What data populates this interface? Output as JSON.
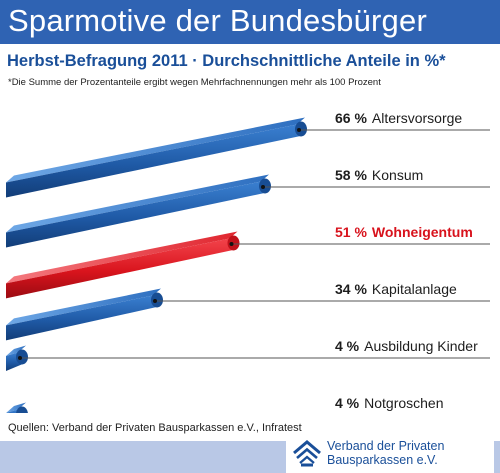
{
  "header": {
    "title": "Sparmotive der Bundesbürger",
    "subtitle": "Herbst-Befragung 2011 · Durchschnittliche Anteile in %*",
    "footnote": "*Die Summe der Prozentanteile ergibt wegen Mehrfachnennungen mehr als 100 Prozent"
  },
  "chart_data": {
    "type": "bar",
    "orientation": "horizontal",
    "title": "Sparmotive der Bundesbürger",
    "subtitle": "Herbst-Befragung 2011 · Durchschnittliche Anteile in %*",
    "unit": "%",
    "categories": [
      "Altersvorsorge",
      "Konsum",
      "Wohneigentum",
      "Kapitalanlage",
      "Ausbildung Kinder",
      "Notgroschen"
    ],
    "values": [
      66,
      58,
      51,
      34,
      4,
      4
    ],
    "value_labels": [
      "66 %",
      "58 %",
      "51 %",
      "34 %",
      "4 %",
      "4 %"
    ],
    "highlight": "Wohneigentum",
    "colors": {
      "bar": "#1f5aa6",
      "highlight": "#e41e2a",
      "highlight_text": "#d8121c",
      "text": "#1d1d1d",
      "rule": "#555555"
    },
    "grid": false,
    "legend": "none"
  },
  "source": "Quellen: Verband der Privaten Bausparkassen e.V., Infratest",
  "logo": {
    "line1": "Verband der Privaten",
    "line2": "Bausparkassen e.V.",
    "icon": "house-roof-icon"
  },
  "colors": {
    "header_band": "#2f63b3",
    "footer_band": "#b9c8e6",
    "brand_text": "#1a4f99"
  }
}
